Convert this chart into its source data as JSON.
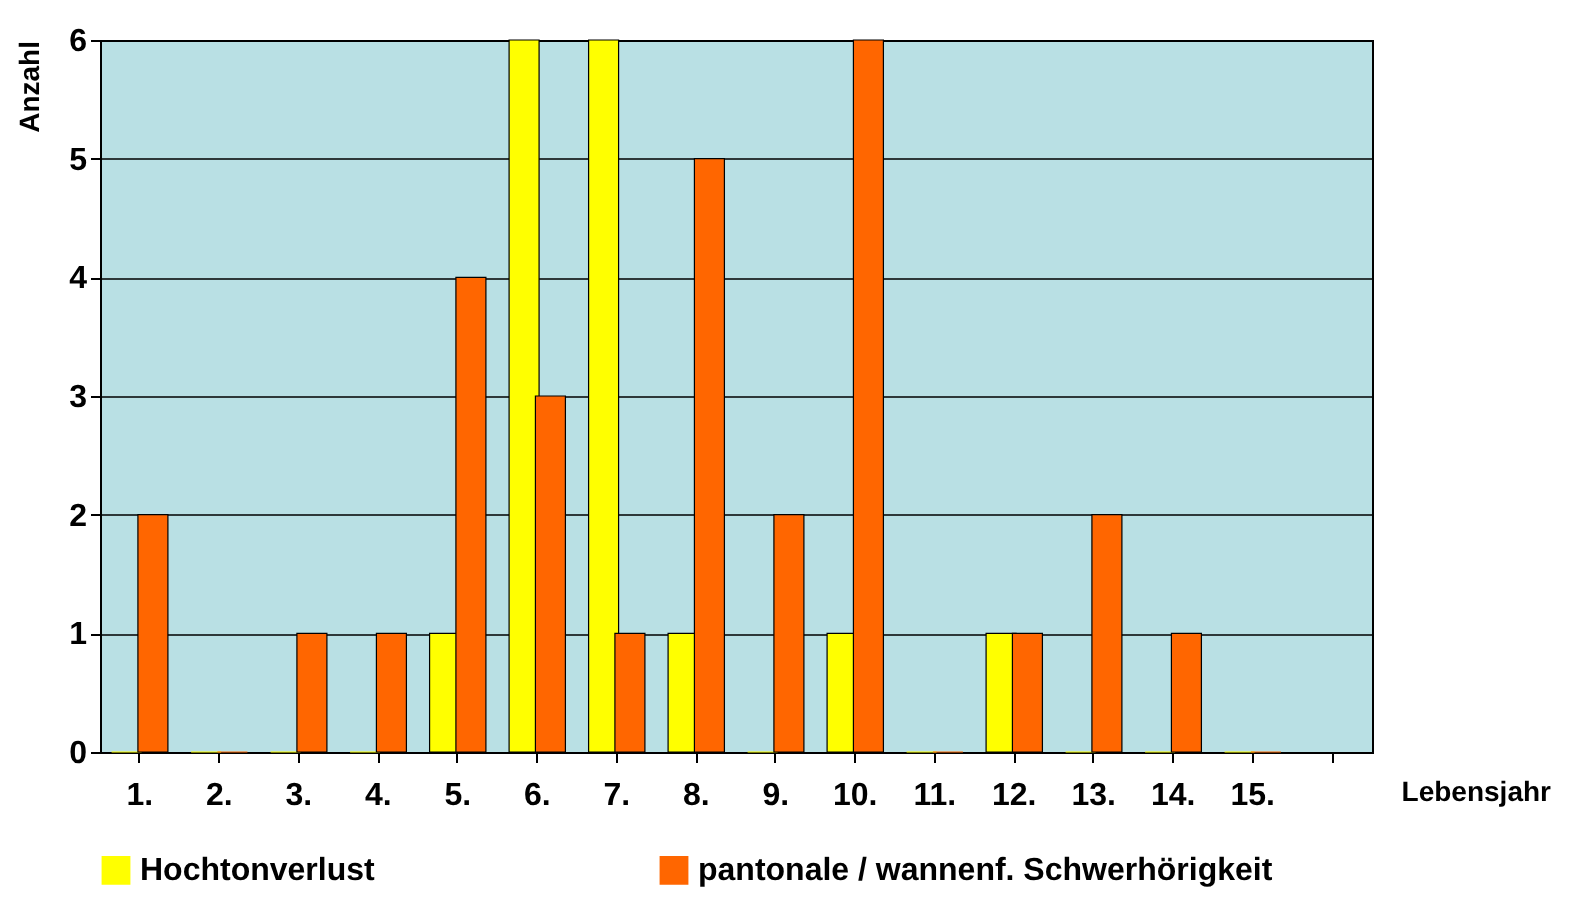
{
  "chart_data": {
    "type": "bar",
    "xlabel": "Lebensjahr",
    "ylabel": "Anzahl",
    "categories": [
      "1.",
      "2.",
      "3.",
      "4.",
      "5.",
      "6.",
      "7.",
      "8.",
      "9.",
      "10.",
      "11.",
      "12.",
      "13.",
      "14.",
      "15.",
      null
    ],
    "series": [
      {
        "name": "Hochtonverlust",
        "color": "#ffff00",
        "values": [
          0,
          0,
          0,
          0,
          1,
          6,
          6,
          1,
          0,
          1,
          0,
          1,
          0,
          0,
          0,
          null
        ]
      },
      {
        "name": "pantonale / wannenf. Schwerhörigkeit",
        "color": "#ff6600",
        "values": [
          2,
          0,
          1,
          1,
          4,
          3,
          1,
          5,
          2,
          6,
          0,
          1,
          2,
          1,
          0,
          null
        ]
      }
    ],
    "ylim": [
      0,
      6
    ],
    "yticks": [
      0,
      1,
      2,
      3,
      4,
      5,
      6
    ],
    "grid": "y",
    "legend": "bottom"
  }
}
